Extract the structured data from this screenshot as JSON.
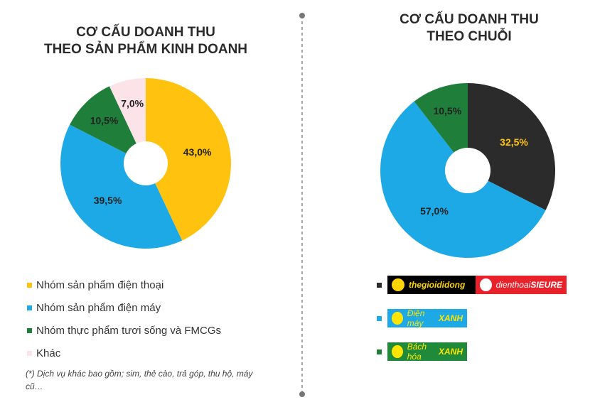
{
  "chart_data": [
    {
      "type": "pie",
      "donut": true,
      "title": "CƠ CẤU DOANH THU\nTHEO SẢN PHẨM KINH DOANH",
      "title_lines": [
        "CƠ CẤU DOANH THU",
        "THEO SẢN PHẨM KINH DOANH"
      ],
      "slices": [
        {
          "name": "Nhóm sản phẩm điện thoại",
          "value": 43.0,
          "label": "43,0%",
          "color": "#FFC20E"
        },
        {
          "name": "Nhóm sản phẩm điện máy",
          "value": 39.5,
          "label": "39,5%",
          "color": "#1CA9E6"
        },
        {
          "name": "Nhóm thực phẩm tươi sống và FMCGs",
          "value": 10.5,
          "label": "10,5%",
          "color": "#1E7E3A"
        },
        {
          "name": "Khác",
          "value": 7.0,
          "label": "7,0%",
          "color": "#FBE3E8"
        }
      ],
      "legend_placement": "bottom",
      "note": "(*) Dịch vụ khác bao gồm; sim, thẻ cào, trả góp, thu hộ, máy cũ…"
    },
    {
      "type": "pie",
      "donut": true,
      "title": "CƠ CẤU DOANH THU\nTHEO CHUỖI",
      "title_lines": [
        "CƠ CẤU DOANH THU",
        "THEO CHUỖI"
      ],
      "slices": [
        {
          "name": "thegioididong / dienthoaiSIEURE",
          "value": 32.5,
          "label": "32,5%",
          "color": "#2B2B2B"
        },
        {
          "name": "Điện máy XANH",
          "value": 57.0,
          "label": "57,0%",
          "color": "#1CA9E6"
        },
        {
          "name": "Bách hóa XANH",
          "value": 10.5,
          "label": "10,5%",
          "color": "#1E7E3A"
        }
      ],
      "legend_placement": "bottom"
    }
  ],
  "brands": {
    "tgdd": "thegioididong",
    "dtsr_a": "dienthoai",
    "dtsr_b": "SIEURE",
    "dmx_a": "Điện máy",
    "dmx_b": "XANH",
    "bhx_a": "Bách hóa",
    "bhx_b": "XANH"
  }
}
